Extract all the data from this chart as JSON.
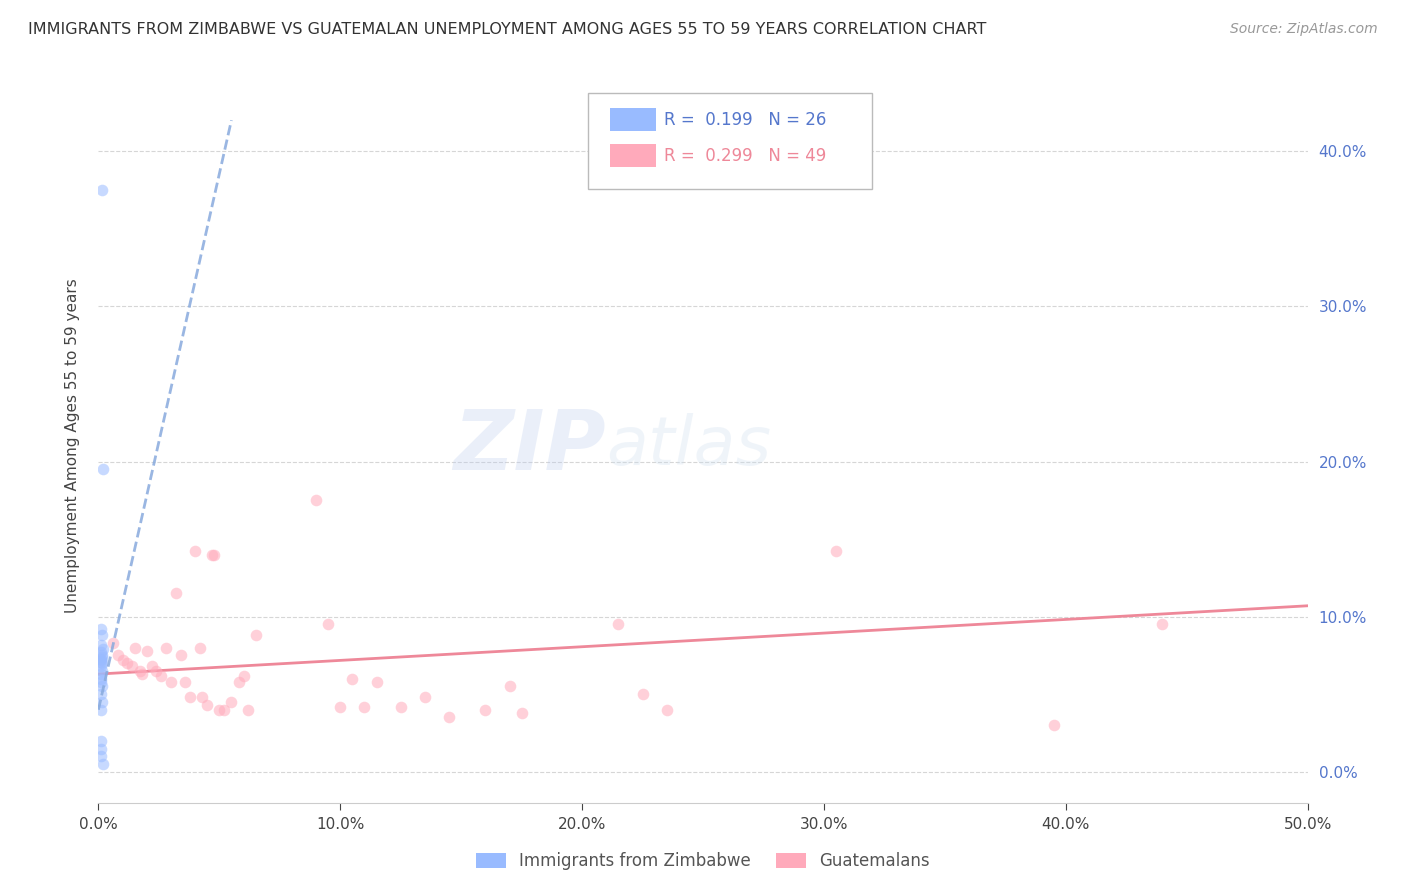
{
  "title": "IMMIGRANTS FROM ZIMBABWE VS GUATEMALAN UNEMPLOYMENT AMONG AGES 55 TO 59 YEARS CORRELATION CHART",
  "source": "Source: ZipAtlas.com",
  "ylabel": "Unemployment Among Ages 55 to 59 years",
  "xlim": [
    0,
    0.5
  ],
  "ylim": [
    -0.02,
    0.44
  ],
  "right_yticks": [
    0.0,
    0.1,
    0.2,
    0.3,
    0.4
  ],
  "bottom_xticks": [
    0.0,
    0.1,
    0.2,
    0.3,
    0.4,
    0.5
  ],
  "grid_color": "#cccccc",
  "watermark_zip": "ZIP",
  "watermark_atlas": "atlas",
  "blue_scatter": [
    [
      0.0015,
      0.375
    ],
    [
      0.002,
      0.195
    ],
    [
      0.001,
      0.092
    ],
    [
      0.0015,
      0.088
    ],
    [
      0.0012,
      0.082
    ],
    [
      0.0018,
      0.079
    ],
    [
      0.001,
      0.077
    ],
    [
      0.0014,
      0.075
    ],
    [
      0.0016,
      0.074
    ],
    [
      0.001,
      0.073
    ],
    [
      0.0012,
      0.072
    ],
    [
      0.0009,
      0.071
    ],
    [
      0.0013,
      0.07
    ],
    [
      0.0011,
      0.068
    ],
    [
      0.0014,
      0.065
    ],
    [
      0.001,
      0.063
    ],
    [
      0.0009,
      0.06
    ],
    [
      0.0012,
      0.058
    ],
    [
      0.0016,
      0.055
    ],
    [
      0.0009,
      0.05
    ],
    [
      0.0013,
      0.045
    ],
    [
      0.001,
      0.04
    ],
    [
      0.0009,
      0.02
    ],
    [
      0.001,
      0.015
    ],
    [
      0.0009,
      0.01
    ],
    [
      0.0018,
      0.005
    ]
  ],
  "pink_scatter": [
    [
      0.006,
      0.083
    ],
    [
      0.008,
      0.075
    ],
    [
      0.01,
      0.072
    ],
    [
      0.012,
      0.07
    ],
    [
      0.014,
      0.068
    ],
    [
      0.015,
      0.08
    ],
    [
      0.017,
      0.065
    ],
    [
      0.018,
      0.063
    ],
    [
      0.02,
      0.078
    ],
    [
      0.022,
      0.068
    ],
    [
      0.024,
      0.065
    ],
    [
      0.026,
      0.062
    ],
    [
      0.028,
      0.08
    ],
    [
      0.03,
      0.058
    ],
    [
      0.032,
      0.115
    ],
    [
      0.034,
      0.075
    ],
    [
      0.036,
      0.058
    ],
    [
      0.038,
      0.048
    ],
    [
      0.04,
      0.142
    ],
    [
      0.042,
      0.08
    ],
    [
      0.043,
      0.048
    ],
    [
      0.045,
      0.043
    ],
    [
      0.047,
      0.14
    ],
    [
      0.048,
      0.14
    ],
    [
      0.05,
      0.04
    ],
    [
      0.052,
      0.04
    ],
    [
      0.055,
      0.045
    ],
    [
      0.058,
      0.058
    ],
    [
      0.06,
      0.062
    ],
    [
      0.062,
      0.04
    ],
    [
      0.065,
      0.088
    ],
    [
      0.09,
      0.175
    ],
    [
      0.095,
      0.095
    ],
    [
      0.1,
      0.042
    ],
    [
      0.105,
      0.06
    ],
    [
      0.11,
      0.042
    ],
    [
      0.115,
      0.058
    ],
    [
      0.125,
      0.042
    ],
    [
      0.135,
      0.048
    ],
    [
      0.145,
      0.035
    ],
    [
      0.16,
      0.04
    ],
    [
      0.17,
      0.055
    ],
    [
      0.175,
      0.038
    ],
    [
      0.215,
      0.095
    ],
    [
      0.225,
      0.05
    ],
    [
      0.235,
      0.04
    ],
    [
      0.305,
      0.142
    ],
    [
      0.395,
      0.03
    ],
    [
      0.44,
      0.095
    ]
  ],
  "blue_line_x": [
    0.0,
    0.055
  ],
  "blue_line_y": [
    0.04,
    0.42
  ],
  "pink_line_x": [
    0.0,
    0.5
  ],
  "pink_line_y": [
    0.063,
    0.107
  ],
  "blue_dot_color": "#99bbff",
  "pink_dot_color": "#ffaabb",
  "blue_line_color": "#88aadd",
  "pink_line_color": "#ee8899",
  "right_axis_color": "#5577cc",
  "title_fontsize": 11.5,
  "source_fontsize": 10,
  "legend_fontsize": 12,
  "axis_label_fontsize": 11,
  "tick_fontsize": 11,
  "dot_size": 70,
  "dot_alpha": 0.55,
  "watermark_color_zip": "#bbccee",
  "watermark_color_atlas": "#ccddee",
  "watermark_fontsize": 60,
  "watermark_alpha": 0.3,
  "legend_r1": "R =  0.199   N = 26",
  "legend_r2": "R =  0.299   N = 49",
  "bottom_legend_1": "Immigrants from Zimbabwe",
  "bottom_legend_2": "Guatemalans"
}
